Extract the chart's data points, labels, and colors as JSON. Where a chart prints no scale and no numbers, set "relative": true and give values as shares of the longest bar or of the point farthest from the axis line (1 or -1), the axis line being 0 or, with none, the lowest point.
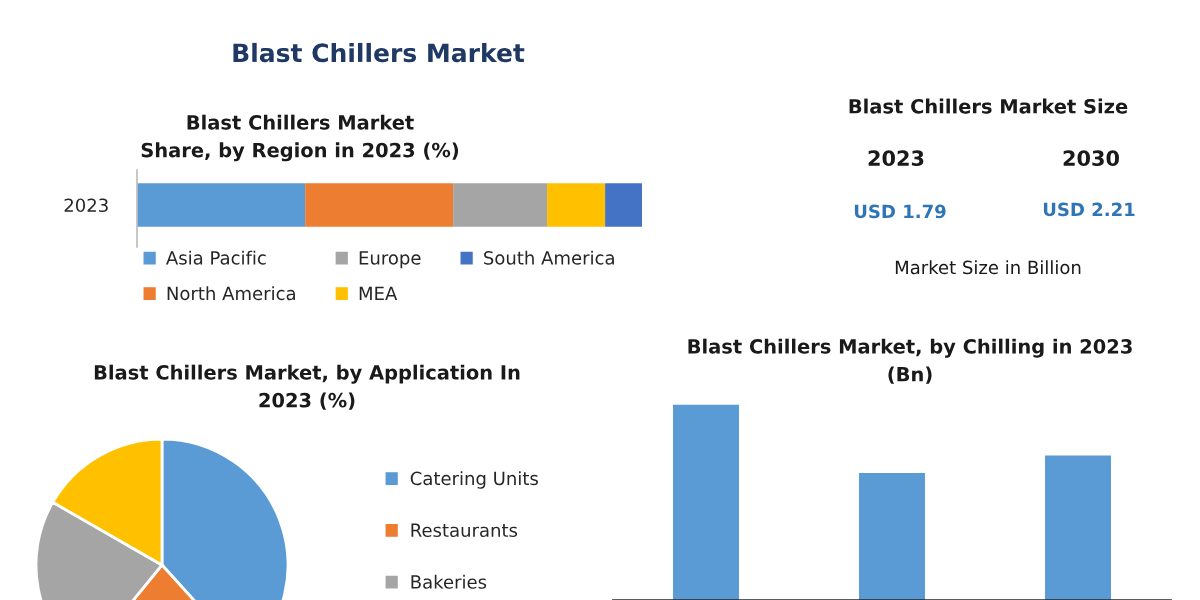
{
  "chart_data": [
    {
      "type": "other",
      "title": "Blast Chillers Market"
    },
    {
      "type": "bar",
      "title": "Blast Chillers Market\nShare, by Region in 2023 (%)",
      "orientation": "horizontal",
      "stacked": true,
      "relative": true,
      "categories": [
        "2023"
      ],
      "legend": "bottom",
      "series": [
        {
          "name": "Asia Pacific",
          "color": "#5b9bd5",
          "values": [
            0.333
          ]
        },
        {
          "name": "North America",
          "color": "#ed7d31",
          "values": [
            0.293
          ]
        },
        {
          "name": "Europe",
          "color": "#a5a5a5",
          "values": [
            0.186
          ]
        },
        {
          "name": "MEA",
          "color": "#ffc000",
          "values": [
            0.115
          ]
        },
        {
          "name": "South America",
          "color": "#4472c4",
          "values": [
            0.073
          ]
        }
      ]
    },
    {
      "type": "other",
      "title": "Blast Chillers Market Size",
      "annotations": [
        "2023",
        "2030",
        "USD 1.79",
        "USD 2.21",
        "Market Size in Billion"
      ]
    },
    {
      "type": "pie",
      "title": "Blast Chillers Market, by Application In\n2023 (%)",
      "categories": [
        "Catering Units",
        "Restaurants",
        "Bakeries",
        null
      ],
      "values": [
        38.3,
        22.6,
        22.4,
        16.7
      ],
      "colors": [
        "#5b9bd5",
        "#ed7d31",
        "#a5a5a5",
        "#ffc000"
      ],
      "legend": "right"
    },
    {
      "type": "bar",
      "title": "Blast Chillers Market, by Chilling in 2023\n(Bn)",
      "categories": [
        null,
        null,
        null
      ],
      "values": [
        1,
        0.65,
        0.74
      ],
      "color": "#5b9bd5",
      "relative": true
    }
  ]
}
